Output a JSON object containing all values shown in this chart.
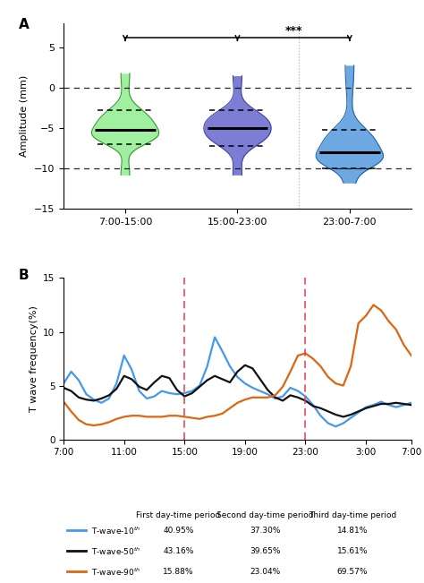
{
  "panel_a_label": "A",
  "panel_b_label": "B",
  "violin_groups": [
    "7:00-15:00",
    "15:00-23:00",
    "23:00-7:00"
  ],
  "violin_colors": [
    "#90EE90",
    "#6666CC",
    "#5599DD"
  ],
  "violin_edge_colors": [
    "#339933",
    "#4444AA",
    "#2266AA"
  ],
  "violin_medians": [
    -5.2,
    -5.0,
    -8.0
  ],
  "violin_q1": [
    -7.0,
    -7.2,
    -10.0
  ],
  "violin_q3": [
    -2.8,
    -2.8,
    -5.2
  ],
  "violin_min": [
    -10.8,
    -10.8,
    -11.8
  ],
  "violin_max": [
    1.8,
    1.5,
    2.8
  ],
  "ylim_a": [
    -15,
    8
  ],
  "yticks_a": [
    -15,
    -10,
    -5,
    0,
    5
  ],
  "ylabel_a": "Amplitude (mm)",
  "dashed_lines_a": [
    0,
    -10
  ],
  "significance_text": "***",
  "time_x": [
    0,
    0.5,
    1,
    1.5,
    2,
    2.5,
    3,
    3.5,
    4,
    4.5,
    5,
    5.5,
    6,
    6.5,
    7,
    7.5,
    8,
    8.5,
    9,
    9.5,
    10,
    10.5,
    11,
    11.5,
    12,
    12.5,
    13,
    13.5,
    14,
    14.5,
    15,
    15.5,
    16,
    16.5,
    17,
    17.5,
    18,
    18.5,
    19,
    19.5,
    20,
    20.5,
    21,
    21.5,
    22,
    22.5,
    23
  ],
  "blue_line": [
    5.2,
    6.3,
    5.5,
    4.2,
    3.7,
    3.4,
    3.8,
    5.2,
    7.8,
    6.5,
    4.5,
    3.8,
    4.0,
    4.5,
    4.3,
    4.2,
    4.3,
    4.5,
    5.0,
    6.8,
    9.5,
    8.2,
    6.8,
    5.8,
    5.2,
    4.8,
    4.5,
    4.2,
    3.8,
    4.0,
    4.8,
    4.5,
    4.0,
    3.2,
    2.2,
    1.5,
    1.2,
    1.5,
    2.0,
    2.5,
    3.0,
    3.2,
    3.5,
    3.2,
    3.0,
    3.2,
    3.4
  ],
  "black_line": [
    4.8,
    4.5,
    3.9,
    3.7,
    3.6,
    3.8,
    4.1,
    4.7,
    5.9,
    5.6,
    4.9,
    4.6,
    5.3,
    5.9,
    5.7,
    4.6,
    4.0,
    4.3,
    4.9,
    5.5,
    5.9,
    5.6,
    5.3,
    6.3,
    6.9,
    6.6,
    5.6,
    4.6,
    3.9,
    3.6,
    4.1,
    3.9,
    3.6,
    3.1,
    2.9,
    2.6,
    2.3,
    2.1,
    2.3,
    2.6,
    2.9,
    3.1,
    3.3,
    3.3,
    3.4,
    3.3,
    3.2
  ],
  "orange_line": [
    3.5,
    2.6,
    1.8,
    1.4,
    1.3,
    1.4,
    1.6,
    1.9,
    2.1,
    2.2,
    2.2,
    2.1,
    2.1,
    2.1,
    2.2,
    2.2,
    2.1,
    2.0,
    1.9,
    2.1,
    2.2,
    2.4,
    2.9,
    3.4,
    3.7,
    3.9,
    3.9,
    3.9,
    4.1,
    4.9,
    6.3,
    7.8,
    8.0,
    7.5,
    6.8,
    5.8,
    5.2,
    5.0,
    6.8,
    10.8,
    11.5,
    12.5,
    12.0,
    11.0,
    10.2,
    8.8,
    7.8
  ],
  "xtick_positions": [
    0,
    4,
    8,
    12,
    16,
    20,
    23
  ],
  "xtick_labels": [
    "7:00",
    "11:00",
    "15:00",
    "19:00",
    "23:00",
    "3:00",
    "7:00"
  ],
  "vline_positions": [
    8,
    16
  ],
  "ylim_b": [
    0,
    15
  ],
  "yticks_b": [
    0,
    5,
    10,
    15
  ],
  "ylabel_b": "T wave frequency(%)",
  "blue_color": "#4499EE",
  "black_color": "#111111",
  "orange_color": "#DD6611",
  "table_row1_name": "T-wave-10",
  "table_row2_name": "T-wave-50",
  "table_row3_name": "T-wave-90",
  "table_row1": [
    "40.95%",
    "37.30%",
    "14.81%"
  ],
  "table_row2": [
    "43.16%",
    "39.65%",
    "15.61%"
  ],
  "table_row3": [
    "15.88%",
    "23.04%",
    "69.57%"
  ]
}
